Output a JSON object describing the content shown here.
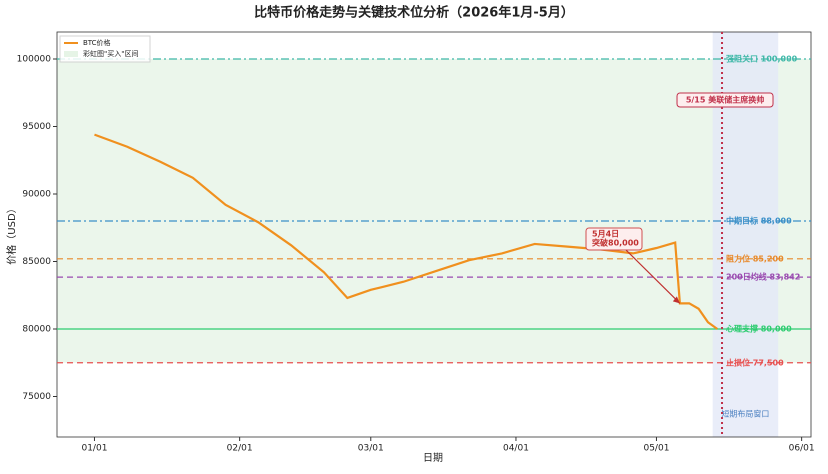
{
  "chart_data": {
    "type": "line",
    "title": "比特币价格走势与关键技术位分析（2026年1月-5月）",
    "x_label": "日期",
    "y_label": "价格（USD）",
    "x": [
      "2026-01-01",
      "2026-01-08",
      "2026-01-15",
      "2026-01-22",
      "2026-01-29",
      "2026-02-05",
      "2026-02-12",
      "2026-02-19",
      "2026-02-24",
      "2026-03-01",
      "2026-03-08",
      "2026-03-15",
      "2026-03-22",
      "2026-03-29",
      "2026-04-05",
      "2026-04-12",
      "2026-04-19",
      "2026-04-26",
      "2026-05-01",
      "2026-05-05",
      "2026-05-06",
      "2026-05-08",
      "2026-05-10",
      "2026-05-12",
      "2026-05-14"
    ],
    "series": [
      {
        "name": "BTC价格",
        "color": "#f0901e",
        "values": [
          94400,
          93500,
          92400,
          91200,
          89200,
          87900,
          86200,
          84200,
          82300,
          82900,
          83500,
          84300,
          85100,
          85600,
          86300,
          86100,
          85900,
          85600,
          86000,
          86400,
          81900,
          81900,
          81500,
          80500,
          80000
        ]
      }
    ],
    "xlim": [
      "2025-12-24",
      "2026-06-03"
    ],
    "xticks": [
      {
        "value": "2026-01-01",
        "label": "01/01"
      },
      {
        "value": "2026-02-01",
        "label": "02/01"
      },
      {
        "value": "2026-03-01",
        "label": "03/01"
      },
      {
        "value": "2026-04-01",
        "label": "04/01"
      },
      {
        "value": "2026-05-01",
        "label": "05/01"
      },
      {
        "value": "2026-06-01",
        "label": "06/01"
      }
    ],
    "ylim": [
      72000,
      102000
    ],
    "yticks": [
      75000,
      80000,
      85000,
      90000,
      95000,
      100000
    ],
    "reference_lines": [
      {
        "value": 100000,
        "label": "强阻关口 100,000",
        "color": "#3fb8a8",
        "style": "dashdot"
      },
      {
        "value": 88000,
        "label": "中期目标 88,000",
        "color": "#3a8fc8",
        "style": "dashdot"
      },
      {
        "value": 85200,
        "label": "阻力位 85,200",
        "color": "#e8892a",
        "style": "dashed"
      },
      {
        "value": 83842,
        "label": "200日均线 83,842",
        "color": "#9a4ab0",
        "style": "dashed"
      },
      {
        "value": 80000,
        "label": "心理支撑 80,000",
        "color": "#2ecc71",
        "style": "solid"
      },
      {
        "value": 77500,
        "label": "止损位 77,500",
        "color": "#e85050",
        "style": "dashed"
      }
    ],
    "y_band": {
      "name": "彩虹图\"买入\"区间",
      "from": 77500,
      "to": 100000,
      "color": "#e6f4e6"
    },
    "x_band": {
      "label": "短期布局窗口",
      "from": "2026-05-13",
      "to": "2026-05-27",
      "color": "#e4e8f8"
    },
    "event_line": {
      "x": "2026-05-15",
      "label": "5/15 美联储主席换帅",
      "color": "#c0304a"
    },
    "annotation": {
      "text": [
        "5月4日",
        "突破80,000"
      ],
      "x": "2026-05-06",
      "y": 81900
    },
    "legend": "upper left"
  }
}
